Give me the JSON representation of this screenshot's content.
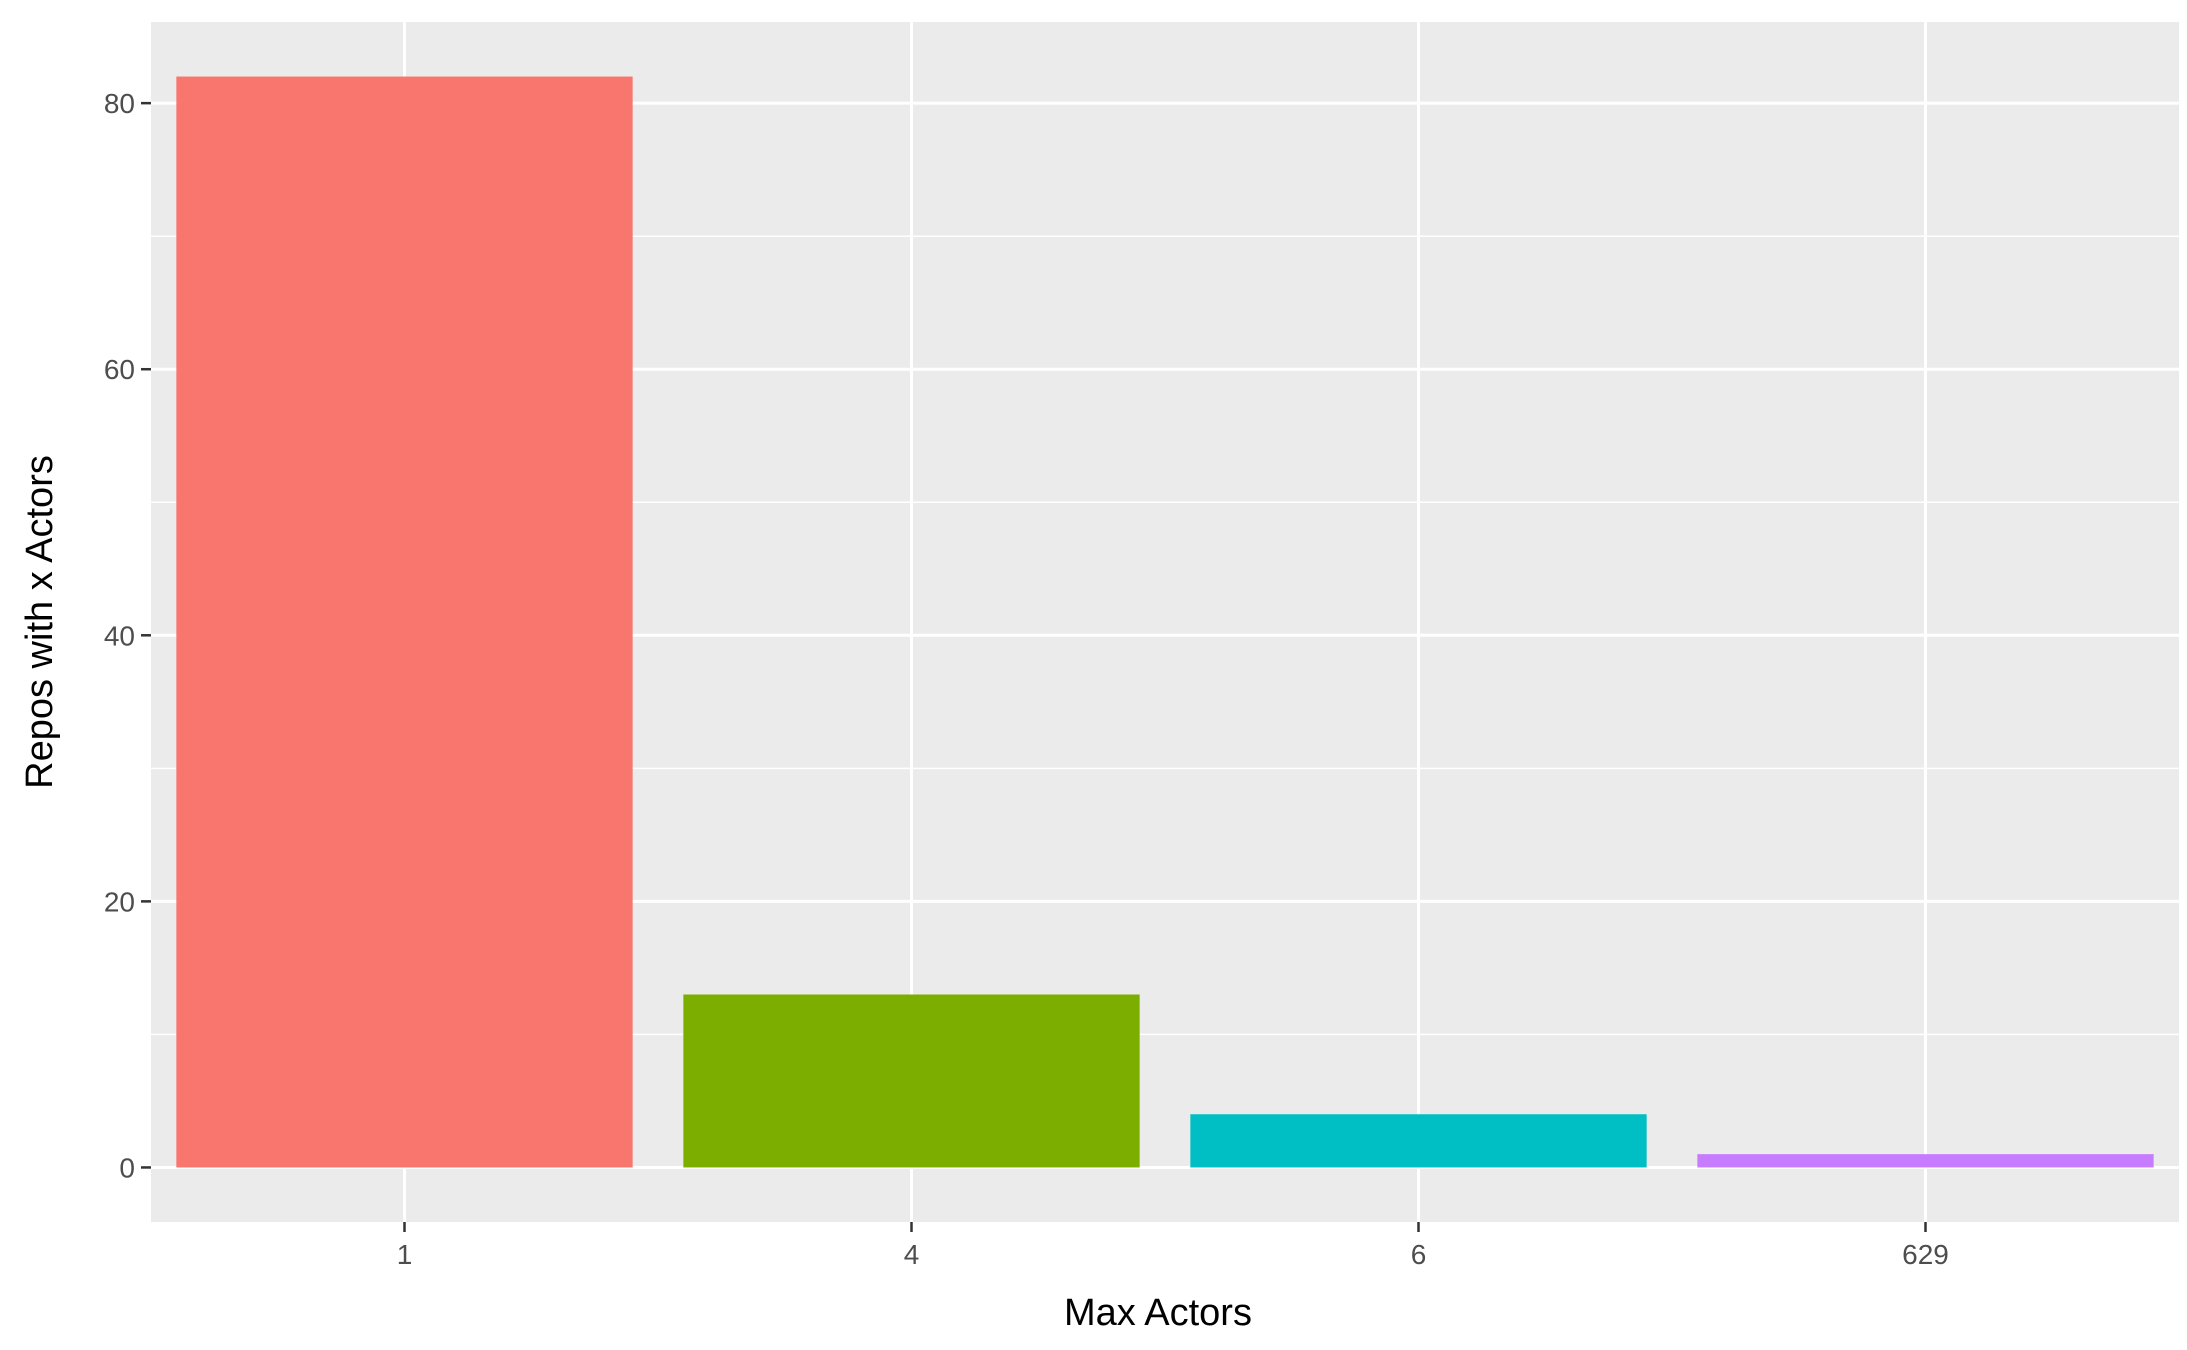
{
  "chart_data": {
    "type": "bar",
    "title": "",
    "xlabel": "Max Actors",
    "ylabel": "Repos with x Actors",
    "categories": [
      "1",
      "4",
      "6",
      "629"
    ],
    "values": [
      82,
      13,
      4,
      1
    ],
    "colors": [
      "#F8766D",
      "#7CAE00",
      "#00BFC4",
      "#C77CFF"
    ],
    "ylim": [
      -4.1,
      86.1
    ],
    "yticks": [
      0,
      20,
      40,
      60,
      80
    ],
    "grid": true,
    "legend": "none",
    "panel_background": "#EBEBEB",
    "grid_color": "#FFFFFF"
  }
}
